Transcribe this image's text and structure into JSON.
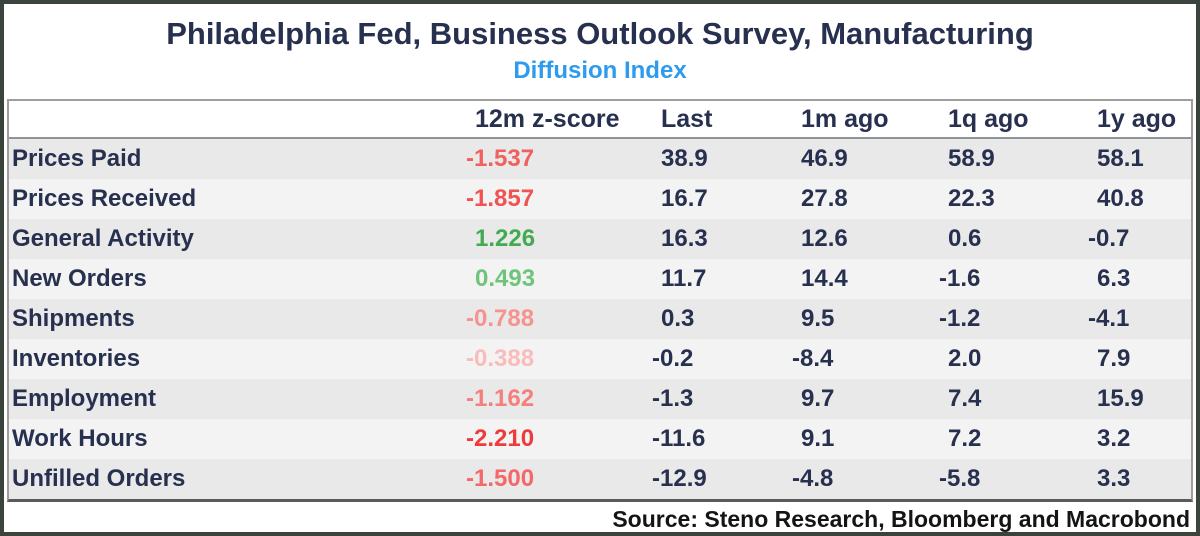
{
  "title": "Philadelphia Fed, Business Outlook Survey, Manufacturing",
  "subtitle": "Diffusion Index",
  "source": "Source: Steno Research, Bloomberg and Macrobond",
  "colors": {
    "frame_border": "#3a443d",
    "title_navy": "#27304f",
    "text_navy": "#27304f",
    "subtitle_blue": "#2f9bee",
    "source_black": "#141414",
    "stripe_dark": "#e9e9e9",
    "stripe_light": "#f2f3f2",
    "table_border": "#9e9e9e",
    "table_border_bottom": "#5a5a5a",
    "header_divider": "#8f9499",
    "z_positive_strong": "#43aa52",
    "z_positive_light": "#6fc47c",
    "z_negative_strong": "#ef3b3b",
    "z_negative_light": "#f8bdbb"
  },
  "chart_data": {
    "type": "table",
    "title": "Philadelphia Fed, Business Outlook Survey, Manufacturing",
    "subtitle": "Diffusion Index",
    "legend_note": "z-score text color encodes sign and magnitude: green = positive, red = negative, paler = closer to zero",
    "columns": [
      "",
      "12m z-score",
      "Last",
      "1m ago",
      "1q ago",
      "1y ago"
    ],
    "rows": [
      {
        "label": "Prices Paid",
        "z_score": "-1.537",
        "z_color": "#f25f5f",
        "last": "38.9",
        "m1": "46.9",
        "q1": "58.9",
        "y1": "58.1"
      },
      {
        "label": "Prices Received",
        "z_score": "-1.857",
        "z_color": "#f15252",
        "last": "16.7",
        "m1": "27.8",
        "q1": "22.3",
        "y1": "40.8"
      },
      {
        "label": "General Activity",
        "z_score": "1.226",
        "z_color": "#43aa52",
        "last": "16.3",
        "m1": "12.6",
        "q1": "0.6",
        "y1": "-0.7"
      },
      {
        "label": "New Orders",
        "z_score": "0.493",
        "z_color": "#6fc47c",
        "last": "11.7",
        "m1": "14.4",
        "q1": "-1.6",
        "y1": "6.3"
      },
      {
        "label": "Shipments",
        "z_score": "-0.788",
        "z_color": "#f59390",
        "last": "0.3",
        "m1": "9.5",
        "q1": "-1.2",
        "y1": "-4.1"
      },
      {
        "label": "Inventories",
        "z_score": "-0.388",
        "z_color": "#f8bdbb",
        "last": "-0.2",
        "m1": "-8.4",
        "q1": "2.0",
        "y1": "7.9"
      },
      {
        "label": "Employment",
        "z_score": "-1.162",
        "z_color": "#f57f7d",
        "last": "-1.3",
        "m1": "9.7",
        "q1": "7.4",
        "y1": "15.9"
      },
      {
        "label": "Work Hours",
        "z_score": "-2.210",
        "z_color": "#ef3b3b",
        "last": "-11.6",
        "m1": "9.1",
        "q1": "7.2",
        "y1": "3.2"
      },
      {
        "label": "Unfilled Orders",
        "z_score": "-1.500",
        "z_color": "#f46868",
        "last": "-12.9",
        "m1": "-4.8",
        "q1": "-5.8",
        "y1": "3.3"
      }
    ]
  }
}
